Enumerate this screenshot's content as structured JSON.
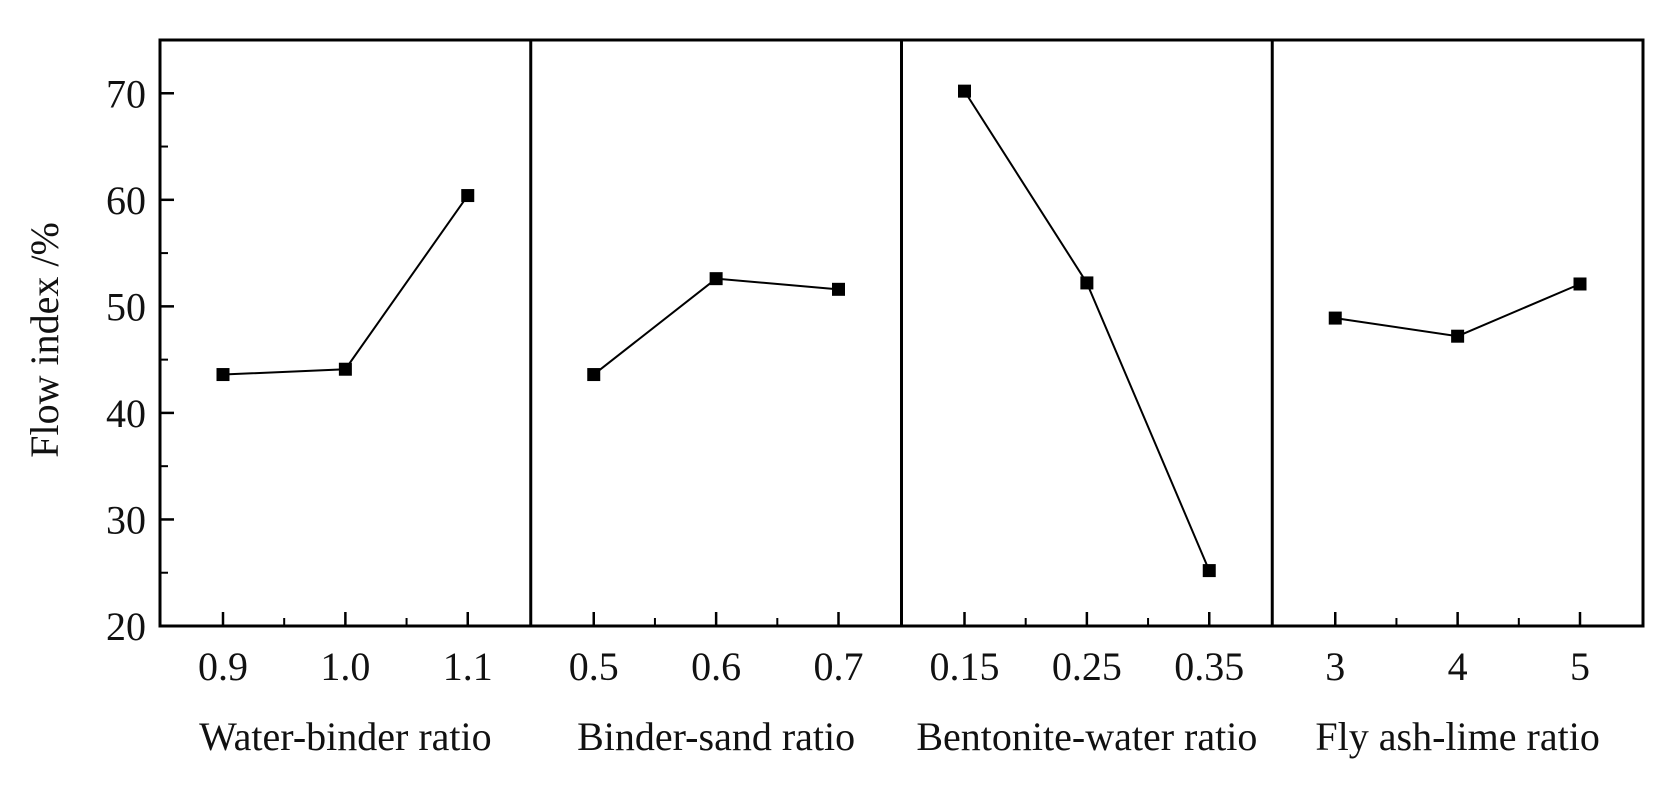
{
  "chart_data": {
    "type": "line",
    "ylabel": "Flow index /%",
    "ylim": [
      20,
      75
    ],
    "y_ticks": [
      "20",
      "30",
      "40",
      "50",
      "60",
      "70"
    ],
    "grid": false,
    "legend": "none",
    "colors": {
      "line": "#000000",
      "marker": "#000000",
      "frame": "#000000",
      "text": "#111111"
    },
    "panels": [
      {
        "xlabel": "Water-binder ratio",
        "categories": [
          "0.9",
          "1.0",
          "1.1"
        ],
        "values": [
          43.6,
          44.1,
          60.4
        ]
      },
      {
        "xlabel": "Binder-sand ratio",
        "categories": [
          "0.5",
          "0.6",
          "0.7"
        ],
        "values": [
          43.6,
          52.6,
          51.6
        ]
      },
      {
        "xlabel": "Bentonite-water ratio",
        "categories": [
          "0.15",
          "0.25",
          "0.35"
        ],
        "values": [
          70.2,
          52.2,
          25.2
        ]
      },
      {
        "xlabel": "Fly ash-lime ratio",
        "categories": [
          "3",
          "4",
          "5"
        ],
        "values": [
          48.9,
          47.2,
          52.1
        ]
      }
    ]
  }
}
